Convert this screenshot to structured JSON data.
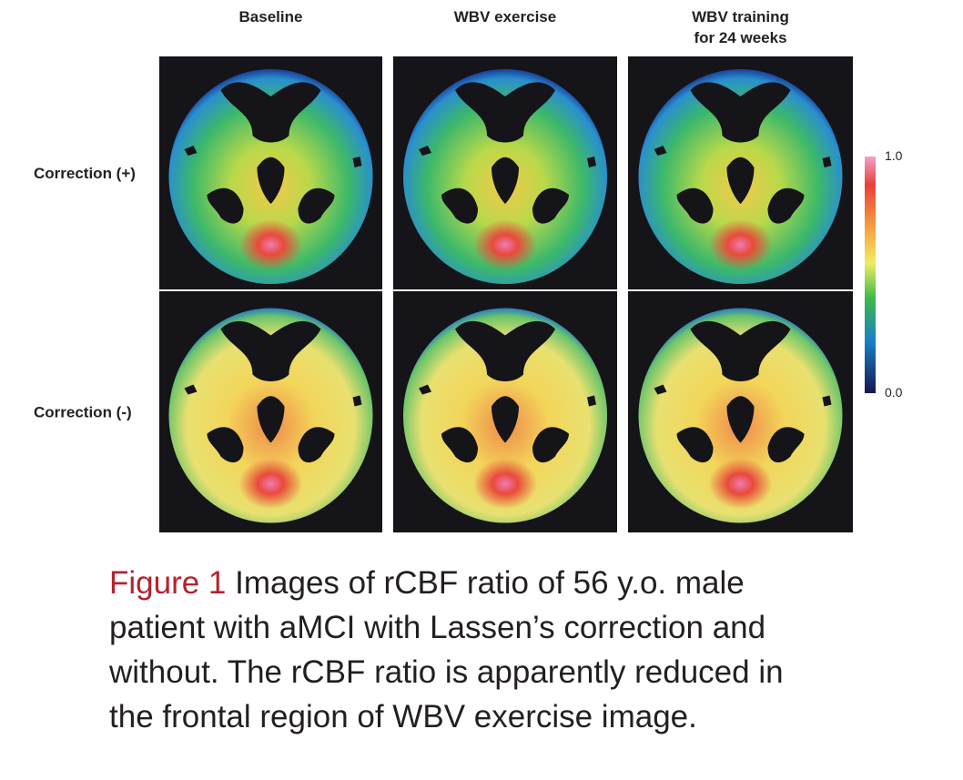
{
  "figure": {
    "columns": [
      [
        "Baseline"
      ],
      [
        "WBV exercise"
      ],
      [
        "WBV training",
        "for 24 weeks"
      ]
    ],
    "rows": [
      "Correction (+)",
      "Correction (-)"
    ],
    "colorbar": {
      "max": "1.0",
      "min": "0.0"
    },
    "caption": {
      "label": "Figure 1",
      "lines": [
        "Images of rCBF ratio of 56 y.o. male",
        "patient with aMCI with Lassen’s correction and",
        "without. The rCBF ratio is apparently reduced in",
        "the frontal region of WBV exercise image."
      ]
    }
  }
}
